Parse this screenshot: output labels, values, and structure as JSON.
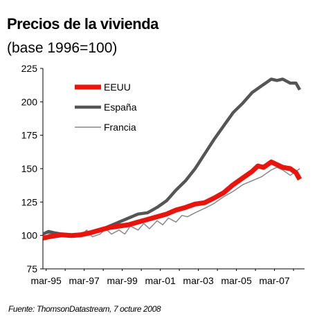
{
  "title": "Precios de la vivienda",
  "subtitle": "(base 1996=100)",
  "source": "Fuente: ThomsonDatastream, 7 octure 2008",
  "chart_data": {
    "type": "line",
    "ylim": [
      75,
      225
    ],
    "yticks": [
      75,
      100,
      125,
      150,
      175,
      200,
      225
    ],
    "xlim": [
      1995.0,
      2008.75
    ],
    "xticks": [
      {
        "label": "mar-95",
        "x": 1995.17
      },
      {
        "label": "mar-97",
        "x": 1997.17
      },
      {
        "label": "mar-99",
        "x": 1999.17
      },
      {
        "label": "mar-01",
        "x": 2001.17
      },
      {
        "label": "mar-03",
        "x": 2003.17
      },
      {
        "label": "mar-05",
        "x": 2005.17
      },
      {
        "label": "mar-07",
        "x": 2007.17
      }
    ],
    "legend_position": "top-left",
    "series": [
      {
        "name": "EEUU",
        "color": "#e8140e",
        "points": [
          [
            1995.0,
            98
          ],
          [
            1995.5,
            99.5
          ],
          [
            1996.0,
            100.5
          ],
          [
            1996.5,
            100
          ],
          [
            1997.0,
            100.5
          ],
          [
            1997.5,
            102
          ],
          [
            1998.0,
            104
          ],
          [
            1998.5,
            106
          ],
          [
            1999.0,
            107
          ],
          [
            1999.5,
            108
          ],
          [
            2000.0,
            110
          ],
          [
            2000.5,
            112
          ],
          [
            2001.0,
            114
          ],
          [
            2001.5,
            116
          ],
          [
            2002.0,
            119
          ],
          [
            2002.5,
            121
          ],
          [
            2003.0,
            123.5
          ],
          [
            2003.5,
            124.5
          ],
          [
            2004.0,
            128
          ],
          [
            2004.5,
            132
          ],
          [
            2005.0,
            138
          ],
          [
            2005.5,
            143
          ],
          [
            2006.0,
            148
          ],
          [
            2006.3,
            152
          ],
          [
            2006.6,
            151
          ],
          [
            2007.0,
            155
          ],
          [
            2007.3,
            153
          ],
          [
            2007.6,
            151
          ],
          [
            2008.0,
            150
          ],
          [
            2008.3,
            147
          ],
          [
            2008.5,
            142
          ]
        ]
      },
      {
        "name": "España",
        "color": "#555555",
        "points": [
          [
            1995.0,
            101
          ],
          [
            1995.3,
            103
          ],
          [
            1995.6,
            102
          ],
          [
            1996.0,
            101
          ],
          [
            1996.5,
            100
          ],
          [
            1997.0,
            100.5
          ],
          [
            1997.5,
            102
          ],
          [
            1998.0,
            104
          ],
          [
            1998.5,
            107
          ],
          [
            1999.0,
            110
          ],
          [
            1999.5,
            113
          ],
          [
            2000.0,
            116
          ],
          [
            2000.5,
            117
          ],
          [
            2001.0,
            121
          ],
          [
            2001.5,
            126
          ],
          [
            2002.0,
            134
          ],
          [
            2002.5,
            141
          ],
          [
            2003.0,
            150
          ],
          [
            2003.5,
            161
          ],
          [
            2004.0,
            172
          ],
          [
            2004.5,
            182
          ],
          [
            2005.0,
            192
          ],
          [
            2005.5,
            199
          ],
          [
            2006.0,
            207
          ],
          [
            2006.5,
            212
          ],
          [
            2007.0,
            217
          ],
          [
            2007.3,
            216
          ],
          [
            2007.6,
            217
          ],
          [
            2008.0,
            214
          ],
          [
            2008.3,
            214
          ],
          [
            2008.5,
            209
          ]
        ]
      },
      {
        "name": "Francia",
        "color": "#888888",
        "points": [
          [
            1995.0,
            102
          ],
          [
            1995.5,
            101
          ],
          [
            1996.0,
            100
          ],
          [
            1996.5,
            99.5
          ],
          [
            1997.0,
            100
          ],
          [
            1997.3,
            104
          ],
          [
            1997.6,
            99
          ],
          [
            1998.0,
            101
          ],
          [
            1998.3,
            105
          ],
          [
            1998.6,
            101
          ],
          [
            1999.0,
            104
          ],
          [
            1999.3,
            101
          ],
          [
            1999.6,
            107
          ],
          [
            2000.0,
            104
          ],
          [
            2000.3,
            109
          ],
          [
            2000.6,
            105
          ],
          [
            2001.0,
            111
          ],
          [
            2001.3,
            108
          ],
          [
            2001.6,
            113
          ],
          [
            2002.0,
            110
          ],
          [
            2002.3,
            115
          ],
          [
            2002.6,
            114
          ],
          [
            2003.0,
            117
          ],
          [
            2003.3,
            119
          ],
          [
            2003.6,
            121
          ],
          [
            2004.0,
            124
          ],
          [
            2004.5,
            129
          ],
          [
            2005.0,
            133
          ],
          [
            2005.5,
            138
          ],
          [
            2006.0,
            141
          ],
          [
            2006.5,
            144
          ],
          [
            2007.0,
            149
          ],
          [
            2007.3,
            151
          ],
          [
            2007.6,
            149
          ],
          [
            2008.0,
            145
          ],
          [
            2008.3,
            148
          ],
          [
            2008.5,
            150
          ]
        ]
      }
    ]
  }
}
